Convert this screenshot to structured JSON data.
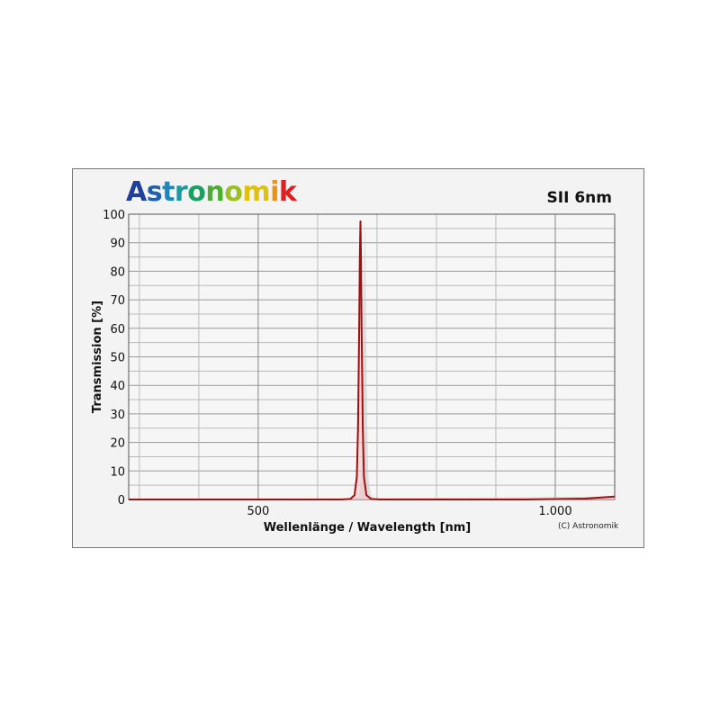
{
  "logo_text": "Astronomik",
  "chart_data": {
    "type": "line",
    "title": "SII 6nm",
    "xlabel": "Wellenlänge / Wavelength [nm]",
    "ylabel": "Transmission [%]",
    "xlim": [
      282,
      1100
    ],
    "ylim": [
      0,
      100
    ],
    "x_ticks": [
      {
        "v": 500,
        "label": "500"
      },
      {
        "v": 1000,
        "label": "1.000"
      }
    ],
    "y_ticks": [
      0,
      10,
      20,
      30,
      40,
      50,
      60,
      70,
      80,
      90,
      100
    ],
    "grid": true,
    "line_color": "#a01010",
    "series": [
      {
        "x": [
          282,
          640,
          655,
          662,
          666,
          668,
          670,
          671,
          672,
          673,
          674,
          676,
          678,
          682,
          690,
          705,
          950,
          1050,
          1100
        ],
        "y": [
          0,
          0,
          0.2,
          1.5,
          8,
          25,
          60,
          85,
          97.5,
          85,
          60,
          25,
          8,
          1.5,
          0.2,
          0,
          0,
          0.3,
          1
        ]
      }
    ]
  },
  "copyright": "(C) Astronomik"
}
